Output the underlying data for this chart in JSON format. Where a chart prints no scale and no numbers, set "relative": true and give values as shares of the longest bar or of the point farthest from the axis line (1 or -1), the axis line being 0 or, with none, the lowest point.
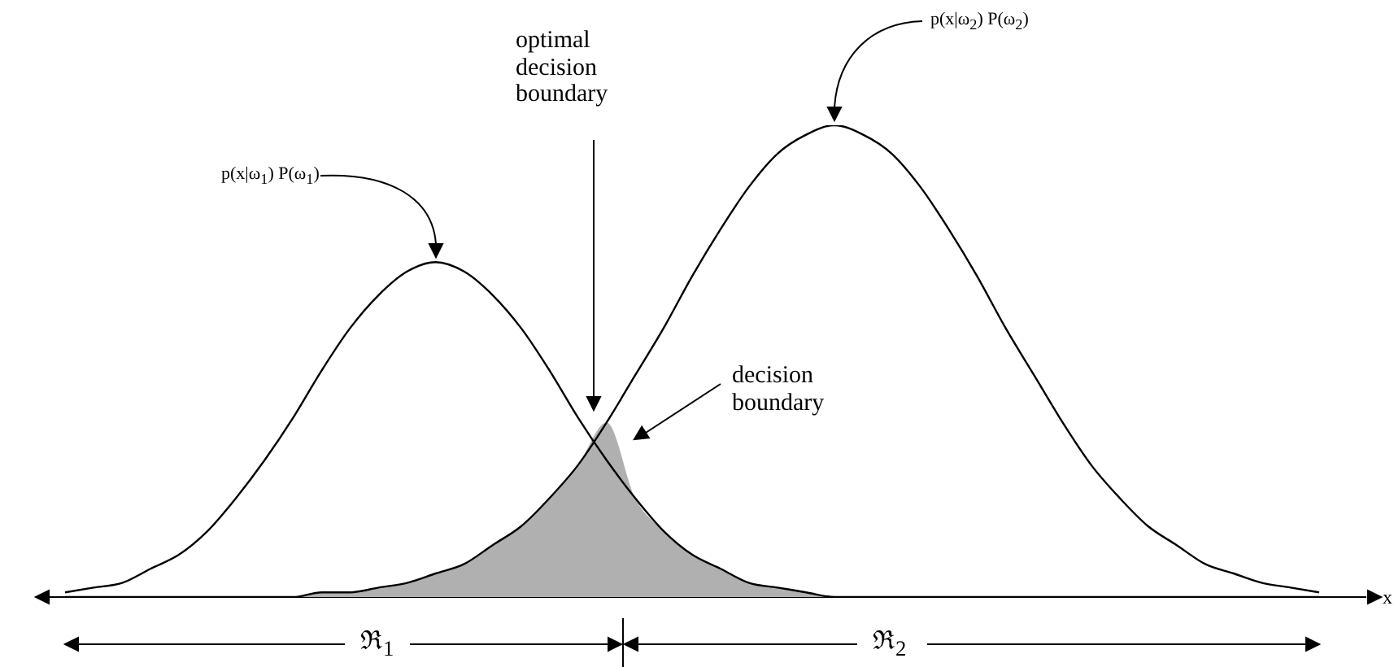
{
  "chart_data": {
    "type": "line",
    "relative": true,
    "xlabel": "x",
    "marker": "none",
    "line_style": "solid",
    "categories": [
      null,
      null,
      null,
      null,
      null,
      null,
      null,
      null,
      null,
      null,
      null,
      null,
      null,
      null,
      null,
      null,
      null,
      null,
      null,
      null,
      null,
      null,
      null,
      null,
      null,
      null,
      null,
      null,
      null,
      null,
      null,
      null,
      null,
      null,
      null,
      null,
      null,
      null,
      null,
      null,
      null,
      null,
      null,
      null,
      null
    ],
    "series": [
      {
        "color": "#000000",
        "values": [
          0.01,
          0.02,
          0.03,
          0.06,
          0.09,
          0.14,
          0.21,
          0.29,
          0.38,
          0.48,
          0.57,
          0.64,
          0.69,
          0.71,
          0.69,
          0.64,
          0.57,
          0.48,
          0.38,
          0.29,
          0.21,
          0.14,
          0.09,
          0.06,
          0.03,
          0.02,
          0.01,
          0,
          0,
          0,
          0,
          0,
          0,
          0,
          0,
          0,
          0,
          0,
          0,
          0,
          0,
          0,
          0,
          0,
          0
        ]
      },
      {
        "color": "#000000",
        "values": [
          0,
          0,
          0,
          0,
          0,
          0,
          0,
          0,
          0,
          0.01,
          0.01,
          0.02,
          0.03,
          0.05,
          0.07,
          0.11,
          0.15,
          0.21,
          0.28,
          0.37,
          0.47,
          0.57,
          0.68,
          0.78,
          0.87,
          0.94,
          0.98,
          1,
          0.98,
          0.94,
          0.87,
          0.78,
          0.68,
          0.57,
          0.47,
          0.37,
          0.28,
          0.21,
          0.15,
          0.11,
          0.07,
          0.05,
          0.03,
          0.02,
          0.01
        ]
      },
      {
        "type": "area",
        "color": "#b0b0b0",
        "values": [
          0,
          0,
          0,
          0,
          0,
          0,
          0,
          0,
          0,
          0.01,
          0.01,
          0.02,
          0.03,
          0.05,
          0.07,
          0.11,
          0.15,
          0.21,
          0.28,
          0.37,
          0.21,
          0.14,
          0.09,
          0.06,
          0.03,
          0.02,
          0.01,
          0,
          0,
          0,
          0,
          0,
          0,
          0,
          0,
          0,
          0,
          0,
          0,
          0,
          0,
          0,
          0,
          0,
          0
        ]
      }
    ],
    "annotations": [
      "p(x|ω$_{1}$) P(ω$_{1}$)",
      "p(x|ω$_{2}$) P(ω$_{2}$)",
      "optimal decision boundary",
      "decision boundary",
      "ℜ$_{1}$",
      "ℜ$_{2}$"
    ]
  }
}
